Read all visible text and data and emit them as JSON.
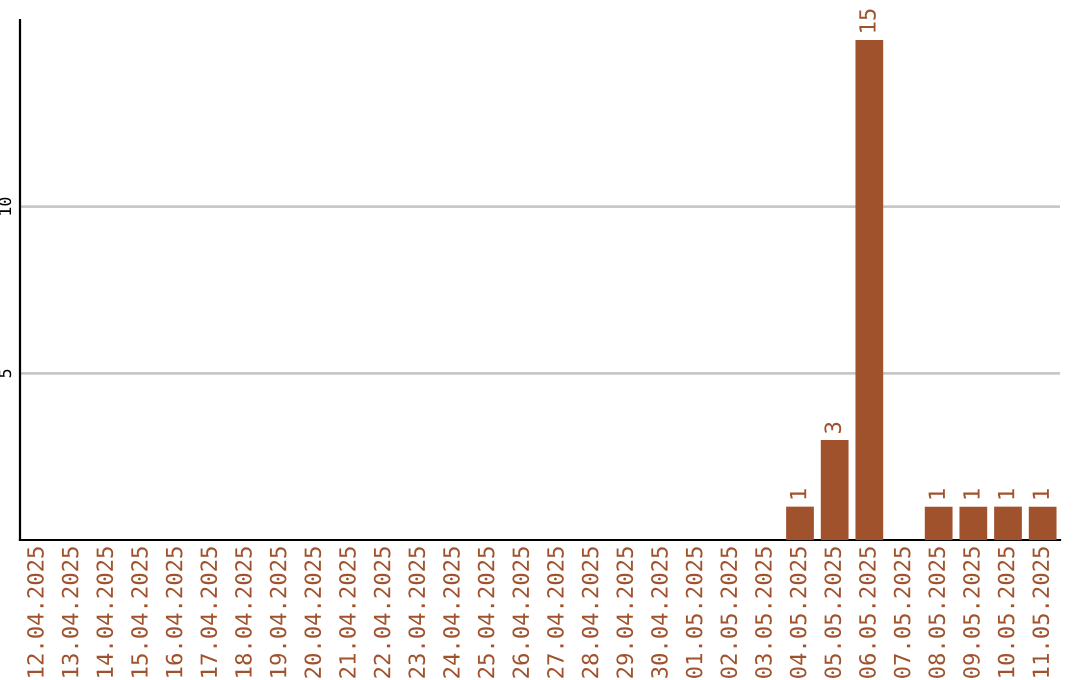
{
  "chart_data": {
    "type": "bar",
    "categories": [
      "12.04.2025",
      "13.04.2025",
      "14.04.2025",
      "15.04.2025",
      "16.04.2025",
      "17.04.2025",
      "18.04.2025",
      "19.04.2025",
      "20.04.2025",
      "21.04.2025",
      "22.04.2025",
      "23.04.2025",
      "24.04.2025",
      "25.04.2025",
      "26.04.2025",
      "27.04.2025",
      "28.04.2025",
      "29.04.2025",
      "30.04.2025",
      "01.05.2025",
      "02.05.2025",
      "03.05.2025",
      "04.05.2025",
      "05.05.2025",
      "06.05.2025",
      "07.05.2025",
      "08.05.2025",
      "09.05.2025",
      "10.05.2025",
      "11.05.2025"
    ],
    "values": [
      0,
      0,
      0,
      0,
      0,
      0,
      0,
      0,
      0,
      0,
      0,
      0,
      0,
      0,
      0,
      0,
      0,
      0,
      0,
      0,
      0,
      0,
      1,
      3,
      15,
      0,
      1,
      1,
      1,
      1
    ],
    "value_labels": [
      null,
      null,
      null,
      null,
      null,
      null,
      null,
      null,
      null,
      null,
      null,
      null,
      null,
      null,
      null,
      null,
      null,
      null,
      null,
      null,
      null,
      null,
      "1",
      "3",
      "15",
      null,
      "1",
      "1",
      "1",
      "1"
    ],
    "color": "#a0522d",
    "ylim": [
      0,
      15.6
    ],
    "yticks": [
      5,
      10
    ],
    "grid": "y"
  }
}
